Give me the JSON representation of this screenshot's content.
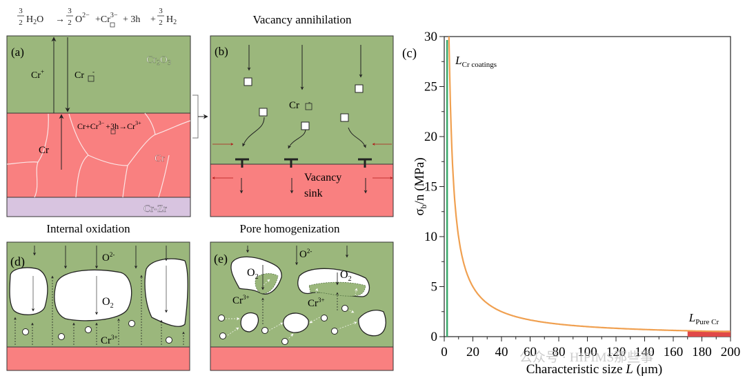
{
  "colors": {
    "oxide_green": "#9bb77c",
    "metal_red": "#f98080",
    "crzr_purple": "#d8c4e0",
    "curve_orange": "#f0a050",
    "coating_green": "#3aa86a",
    "purecr_red": "#e04848",
    "grain_boundary": "#fbe6e6",
    "ink": "#222222",
    "dark_red_arrow": "#b01818"
  },
  "equation_top": {
    "frac_num": "3",
    "frac_den": "2",
    "h2o": "H",
    "h2o_sub": "2",
    "h2o_o": "O",
    "arrow": "→",
    "o_frac_num": "3",
    "o_frac_den": "2",
    "o_ion": "O",
    "o_ion_sup": "2−",
    "cr_vac": "+Cr",
    "cr_vac_sup": "3−",
    "holes": "+ 3h",
    "h2_frac_num": "3",
    "h2_frac_den": "2",
    "h2": "+",
    "h2_h": "H",
    "h2_sub": "2"
  },
  "panels": {
    "a": {
      "label": "(a)",
      "oxide_label": "Cr",
      "oxide_sub": "2",
      "oxide_o": "O",
      "oxide_o_sub": "3",
      "cr_plus": "Cr",
      "cr_plus_sup": "+",
      "cr_vac": "Cr",
      "cr_vac_sup": "-",
      "reaction": "Cr+Cr",
      "reaction_sup": "3−",
      "reaction_rest": "+3h→Cr",
      "reaction_sup2": "3+",
      "cr_left": "Cr",
      "cr_right": "Cr",
      "crzr": "Cr-Zr"
    },
    "b": {
      "title": "Vacancy annihilation",
      "label": "(b)",
      "cr_vac": "Cr",
      "cr_vac_sup": "-",
      "sink_line1": "Vacancy",
      "sink_line2": "sink"
    },
    "d": {
      "title": "Internal oxidation",
      "label": "(d)",
      "o_ion": "O",
      "o_ion_sup": "2-",
      "o2": "O",
      "o2_sub": "2",
      "cr3": "Cr",
      "cr3_sup": "3+"
    },
    "e": {
      "title": "Pore homogenization",
      "label": "(e)",
      "o_ion": "O",
      "o_ion_sup": "2-",
      "o2": "O",
      "o2_sub": "2",
      "cr3": "Cr",
      "cr3_sup": "3+"
    }
  },
  "chart_data": {
    "type": "line",
    "panel_label": "(c)",
    "title": "",
    "xlabel": "Characteristic size L (μm)",
    "xlabel_main": "Characteristic size ",
    "xlabel_italic": "L",
    "xlabel_unit": " (μm)",
    "ylabel": "σb/n (MPa)",
    "ylabel_sigma": "σ",
    "ylabel_sub": "b",
    "ylabel_rest": "/n (MPa)",
    "xlim": [
      0,
      200
    ],
    "ylim": [
      0,
      30
    ],
    "xticks": [
      0,
      20,
      40,
      60,
      80,
      100,
      120,
      140,
      160,
      180,
      200
    ],
    "yticks": [
      0,
      5,
      10,
      15,
      20,
      25,
      30
    ],
    "grid": false,
    "series": [
      {
        "name": "σb/n vs L",
        "color": "#f0a050",
        "x": [
          3.3,
          4,
          5,
          6,
          7,
          8,
          10,
          12,
          15,
          20,
          25,
          30,
          40,
          50,
          60,
          80,
          100,
          120,
          140,
          160,
          180,
          200
        ],
        "y": [
          30,
          25,
          20,
          16.7,
          14.3,
          12.5,
          10,
          8.3,
          6.7,
          5,
          4,
          3.3,
          2.5,
          2,
          1.67,
          1.25,
          1.0,
          0.83,
          0.71,
          0.63,
          0.56,
          0.5
        ]
      }
    ],
    "annotations": [
      {
        "name": "L_Cr_coatings",
        "text_italic": "L",
        "text_sub": "Cr coatings",
        "x": 2,
        "color": "#3aa86a",
        "kind": "vertical-line"
      },
      {
        "name": "L_Pure_Cr",
        "text_italic": "L",
        "text_sub": "Pure Cr",
        "x_range": [
          170,
          200
        ],
        "color": "#e04848",
        "kind": "band"
      }
    ]
  },
  "watermark": "公众号 · HIPIMS那些事"
}
